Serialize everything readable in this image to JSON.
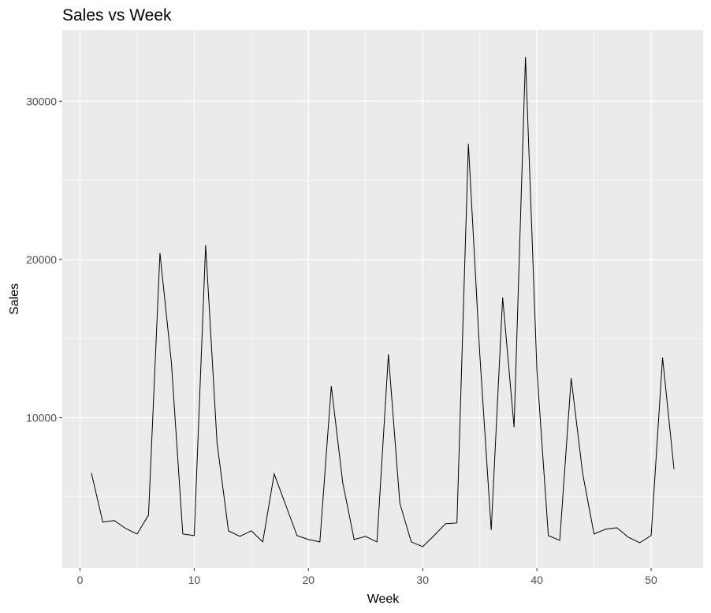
{
  "chart_data": {
    "type": "line",
    "title": "Sales vs Week",
    "xlabel": "Week",
    "ylabel": "Sales",
    "xlim": [
      -1.55,
      54.55
    ],
    "ylim": [
      500,
      34500
    ],
    "xticks": [
      0,
      10,
      20,
      30,
      40,
      50
    ],
    "yticks": [
      10000,
      20000,
      30000
    ],
    "x_minor_ticks": [
      5,
      15,
      25,
      35,
      45
    ],
    "y_minor_ticks": [
      5000,
      15000,
      25000
    ],
    "grid": true,
    "legend": "none",
    "colors": {
      "panel_background": "#ebebeb",
      "grid_major": "#ffffff",
      "line": "#000000",
      "tick_label": "#4d4d4d",
      "tick_mark": "#333333"
    },
    "series": [
      {
        "x": [
          1,
          2,
          3,
          4,
          5,
          6,
          7,
          8,
          9,
          10,
          11,
          12,
          13,
          14,
          15,
          16,
          17,
          18,
          19,
          20,
          21,
          22,
          23,
          24,
          25,
          26,
          27,
          28,
          29,
          30,
          31,
          32,
          33,
          34,
          35,
          36,
          37,
          38,
          39,
          40,
          41,
          42,
          43,
          44,
          45,
          46,
          47,
          48,
          49,
          50,
          51,
          52
        ],
        "values": [
          6500,
          3400,
          3500,
          3000,
          2650,
          3850,
          20400,
          13500,
          2650,
          2550,
          20900,
          8400,
          2850,
          2500,
          2850,
          2150,
          6450,
          4500,
          2550,
          2300,
          2150,
          12000,
          5900,
          2300,
          2500,
          2150,
          14000,
          4600,
          2150,
          1850,
          2550,
          3300,
          3350,
          27300,
          14000,
          2900,
          17600,
          9400,
          32800,
          13000,
          2550,
          2250,
          12500,
          6500,
          2650,
          2950,
          3050,
          2450,
          2100,
          2550,
          13800,
          6750
        ]
      }
    ]
  }
}
